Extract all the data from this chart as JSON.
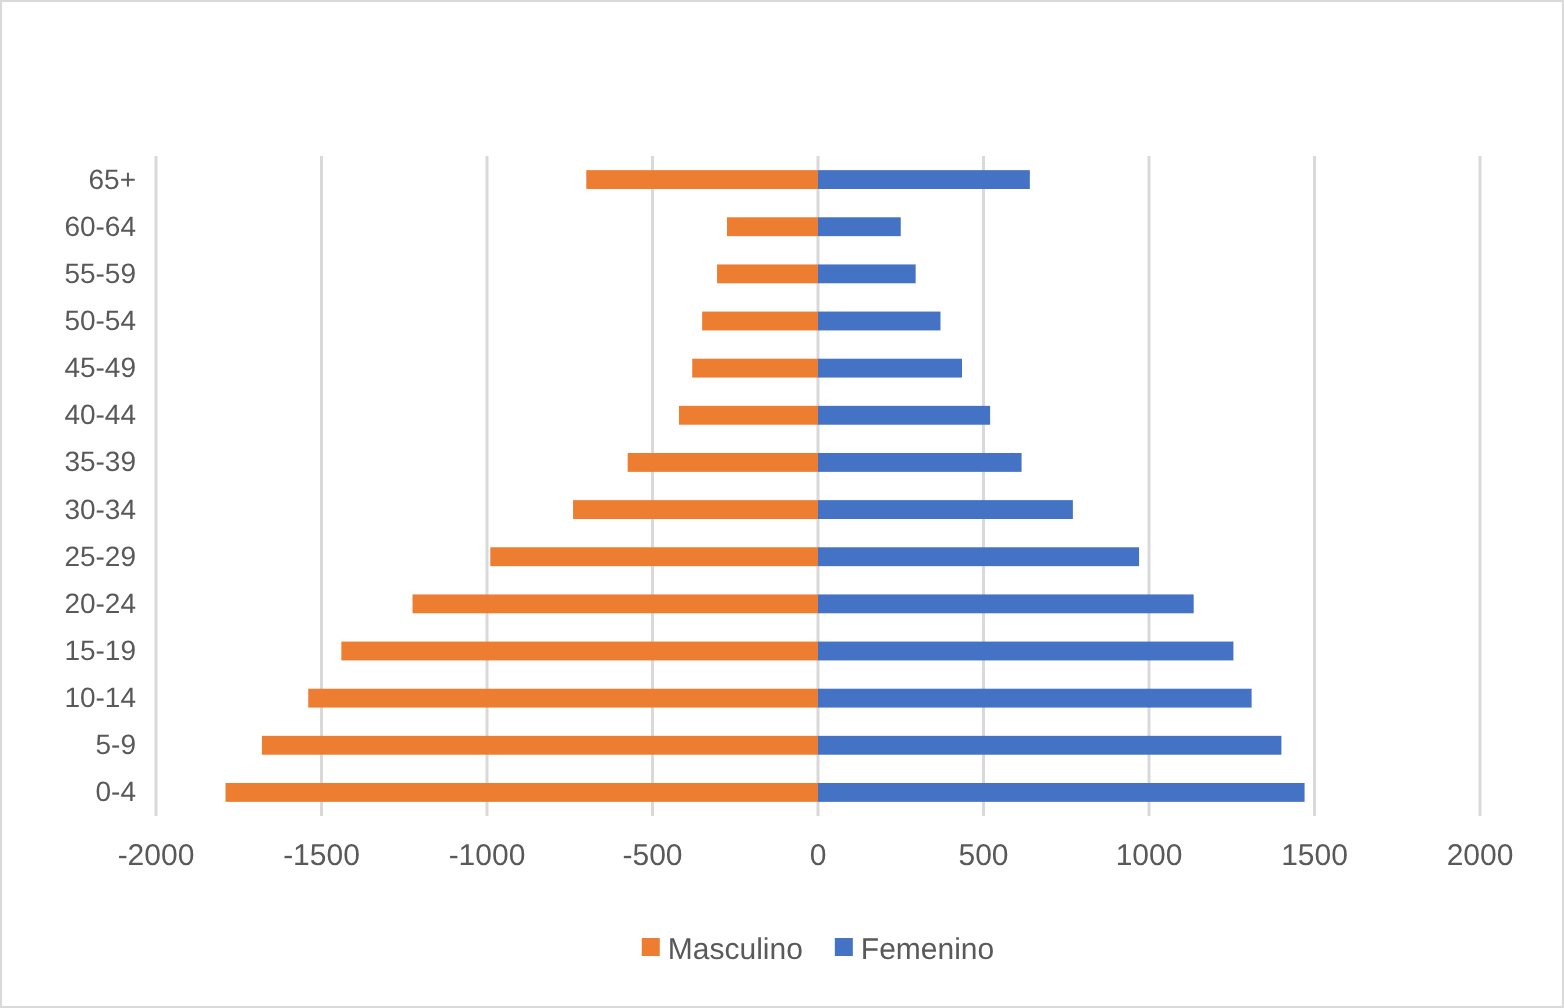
{
  "chart_data": {
    "type": "bar",
    "orientation": "horizontal",
    "stacked": true,
    "categories": [
      "65+",
      "60-64",
      "55-59",
      "50-54",
      "45-49",
      "40-44",
      "35-39",
      "30-34",
      "25-29",
      "20-24",
      "15-19",
      "10-14",
      "5-9",
      "0-4"
    ],
    "series": [
      {
        "name": "Masculino",
        "color": "#ed7d31",
        "values": [
          -700,
          -275,
          -305,
          -350,
          -380,
          -420,
          -575,
          -740,
          -990,
          -1225,
          -1440,
          -1540,
          -1680,
          -1790
        ]
      },
      {
        "name": "Femenino",
        "color": "#4472c4",
        "values": [
          640,
          250,
          295,
          370,
          435,
          520,
          615,
          770,
          970,
          1135,
          1255,
          1310,
          1400,
          1470
        ]
      }
    ],
    "xlim": [
      -2000,
      2000
    ],
    "xticks": [
      -2000,
      -1500,
      -1000,
      -500,
      0,
      500,
      1000,
      1500,
      2000
    ],
    "grid": "x",
    "legend": "bottom"
  }
}
